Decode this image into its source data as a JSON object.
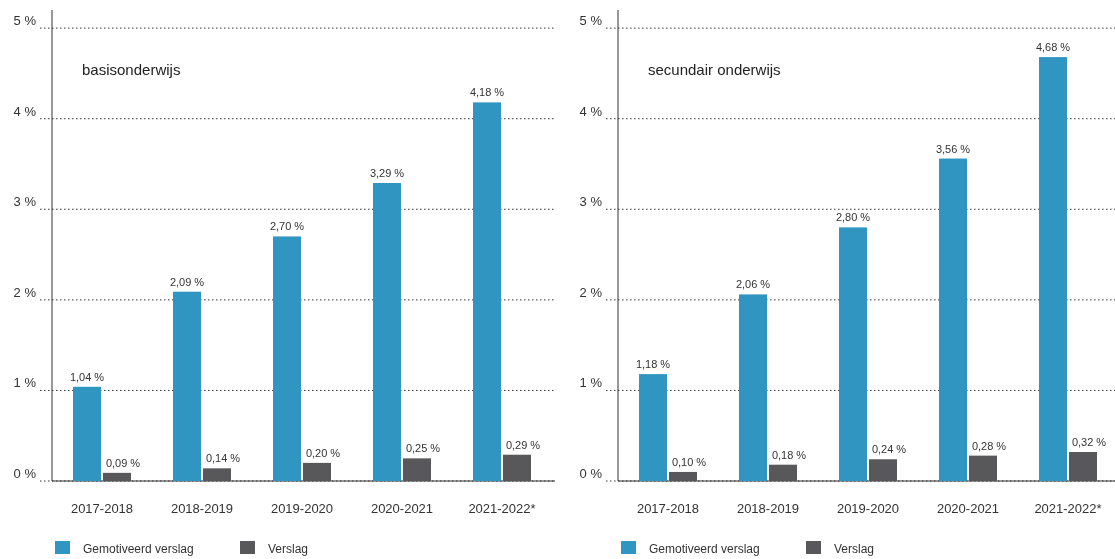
{
  "chart_data": [
    {
      "type": "bar",
      "title": "basisonderwijs",
      "categories": [
        "2017-2018",
        "2018-2019",
        "2019-2020",
        "2020-2021",
        "2021-2022*"
      ],
      "series": [
        {
          "name": "Gemotiveerd verslag",
          "color": "#3095c0",
          "values": [
            1.04,
            2.09,
            2.7,
            3.29,
            4.18
          ],
          "value_labels": [
            "1,04 %",
            "2,09 %",
            "2,70 %",
            "3,29 %",
            "4,18 %"
          ]
        },
        {
          "name": "Verslag",
          "color": "#58585a",
          "values": [
            0.09,
            0.14,
            0.2,
            0.25,
            0.29
          ],
          "value_labels": [
            "0,09 %",
            "0,14 %",
            "0,20 %",
            "0,25 %",
            "0,29 %"
          ]
        }
      ],
      "ylim": [
        0,
        5.2
      ],
      "yticks": [
        {
          "value": 0,
          "label": "0 %"
        },
        {
          "value": 1,
          "label": "1 %"
        },
        {
          "value": 2,
          "label": "2 %"
        },
        {
          "value": 3,
          "label": "3 %"
        },
        {
          "value": 4,
          "label": "4 %"
        },
        {
          "value": 5,
          "label": "5 %"
        }
      ],
      "grid": "y",
      "legend": "bottom"
    },
    {
      "type": "bar",
      "title": "secundair onderwijs",
      "categories": [
        "2017-2018",
        "2018-2019",
        "2019-2020",
        "2020-2021",
        "2021-2022*"
      ],
      "series": [
        {
          "name": "Gemotiveerd verslag",
          "color": "#3095c0",
          "values": [
            1.18,
            2.06,
            2.8,
            3.56,
            4.68
          ],
          "value_labels": [
            "1,18 %",
            "2,06 %",
            "2,80 %",
            "3,56 %",
            "4,68 %"
          ]
        },
        {
          "name": "Verslag",
          "color": "#58585a",
          "values": [
            0.1,
            0.18,
            0.24,
            0.28,
            0.32
          ],
          "value_labels": [
            "0,10 %",
            "0,18 %",
            "0,24 %",
            "0,28 %",
            "0,32 %"
          ]
        }
      ],
      "ylim": [
        0,
        5.2
      ],
      "yticks": [
        {
          "value": 0,
          "label": "0 %"
        },
        {
          "value": 1,
          "label": "1 %"
        },
        {
          "value": 2,
          "label": "2 %"
        },
        {
          "value": 3,
          "label": "3 %"
        },
        {
          "value": 4,
          "label": "4 %"
        },
        {
          "value": 5,
          "label": "5 %"
        }
      ],
      "grid": "y",
      "legend": "bottom"
    }
  ]
}
